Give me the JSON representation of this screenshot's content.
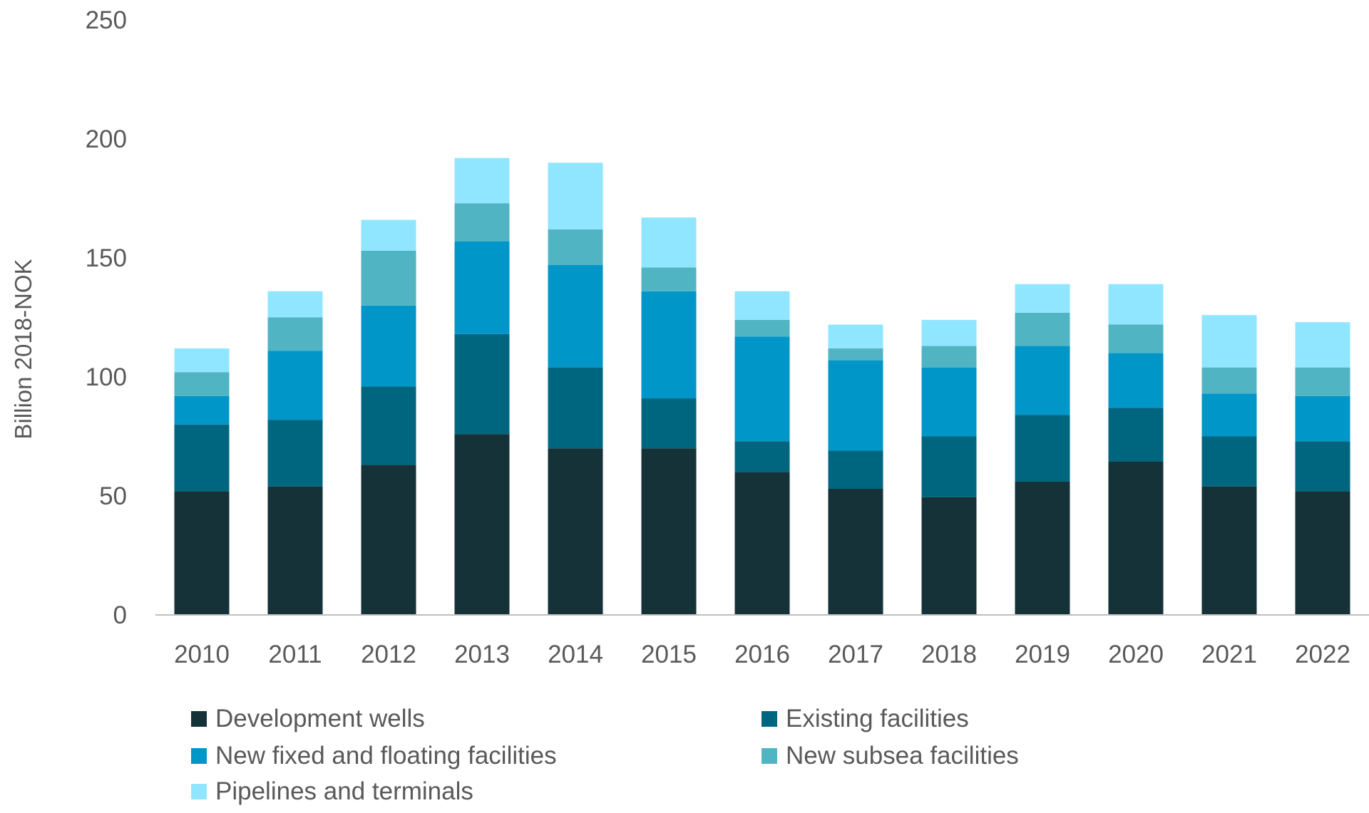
{
  "chart_data": {
    "type": "bar",
    "stacked": true,
    "title": "",
    "xlabel": "",
    "ylabel": "Billion 2018-NOK",
    "ylim": [
      0,
      250
    ],
    "yticks": [
      0,
      50,
      100,
      150,
      200,
      250
    ],
    "grid": false,
    "legend_position": "bottom",
    "categories": [
      "2010",
      "2011",
      "2012",
      "2013",
      "2014",
      "2015",
      "2016",
      "2017",
      "2018",
      "2019",
      "2020",
      "2021",
      "2022"
    ],
    "series": [
      {
        "name": "Development wells",
        "color": "#143237",
        "values": [
          52,
          54,
          63,
          76,
          70,
          70,
          60,
          53,
          49.5,
          56,
          64.5,
          54,
          52
        ]
      },
      {
        "name": "Existing facilities",
        "color": "#006680",
        "values": [
          28,
          28,
          33,
          42,
          34,
          21,
          13,
          16,
          25.5,
          28,
          22.5,
          21,
          21
        ]
      },
      {
        "name": "New fixed and floating facilities",
        "color": "#0096c8",
        "values": [
          12,
          29,
          34,
          39,
          43,
          45,
          44,
          38,
          29,
          29,
          23,
          18,
          19
        ]
      },
      {
        "name": "New subsea facilities",
        "color": "#50b4c3",
        "values": [
          10,
          14,
          23,
          16,
          15,
          10,
          7,
          5,
          9,
          14,
          12,
          11,
          12
        ]
      },
      {
        "name": "Pipelines and terminals",
        "color": "#91e6ff",
        "values": [
          10,
          11,
          13,
          19,
          28,
          21,
          12,
          10,
          11,
          12,
          17,
          22,
          19
        ]
      }
    ]
  }
}
